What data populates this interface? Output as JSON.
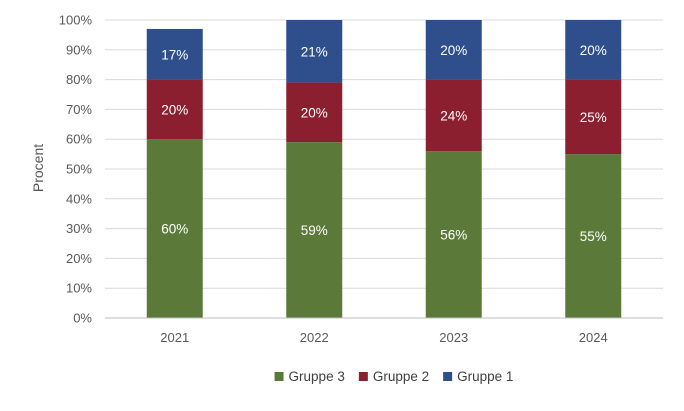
{
  "chart_data": {
    "type": "bar",
    "stacked": true,
    "categories": [
      "2021",
      "2022",
      "2023",
      "2024"
    ],
    "series": [
      {
        "name": "Gruppe 3",
        "color": "#5B7A3A",
        "values": [
          60,
          59,
          56,
          55
        ],
        "labels": [
          "60%",
          "59%",
          "56%",
          "55%"
        ]
      },
      {
        "name": "Gruppe 2",
        "color": "#8B1E2F",
        "values": [
          20,
          20,
          24,
          25
        ],
        "labels": [
          "20%",
          "20%",
          "24%",
          "25%"
        ]
      },
      {
        "name": "Gruppe 1",
        "color": "#2E4F8C",
        "values": [
          17,
          21,
          20,
          20
        ],
        "labels": [
          "17%",
          "21%",
          "20%",
          "20%"
        ]
      }
    ],
    "ylabel": "Procent",
    "xlabel": "",
    "ylim": [
      0,
      100
    ],
    "y_ticks": [
      0,
      10,
      20,
      30,
      40,
      50,
      60,
      70,
      80,
      90,
      100
    ],
    "y_tick_labels": [
      "0%",
      "10%",
      "20%",
      "30%",
      "40%",
      "50%",
      "60%",
      "70%",
      "80%",
      "90%",
      "100%"
    ],
    "grid": true,
    "legend_position": "bottom",
    "legend_order": [
      0,
      1,
      2
    ]
  }
}
